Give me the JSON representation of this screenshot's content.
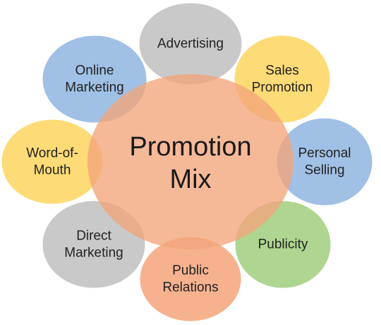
{
  "center": {
    "lines": [
      "Promotion",
      "Mix"
    ],
    "color": "#f4a57b"
  },
  "satellites": [
    {
      "name": "advertising",
      "lines": [
        "Advertising"
      ],
      "color": "#c0c0c0"
    },
    {
      "name": "sales-promotion",
      "lines": [
        "Sales",
        "Promotion"
      ],
      "color": "#fdd55e"
    },
    {
      "name": "personal-selling",
      "lines": [
        "Personal",
        "Selling"
      ],
      "color": "#8fb5e0"
    },
    {
      "name": "publicity",
      "lines": [
        "Publicity"
      ],
      "color": "#a0cf7d"
    },
    {
      "name": "public-relations",
      "lines": [
        "Public",
        "Relations"
      ],
      "color": "#f4a57b"
    },
    {
      "name": "direct-marketing",
      "lines": [
        "Direct",
        "Marketing"
      ],
      "color": "#c0c0c0"
    },
    {
      "name": "word-of-mouth",
      "lines": [
        "Word-of-",
        "Mouth"
      ],
      "color": "#fdd55e"
    },
    {
      "name": "online-marketing",
      "lines": [
        "Online",
        "Marketing"
      ],
      "color": "#8fb5e0"
    }
  ]
}
